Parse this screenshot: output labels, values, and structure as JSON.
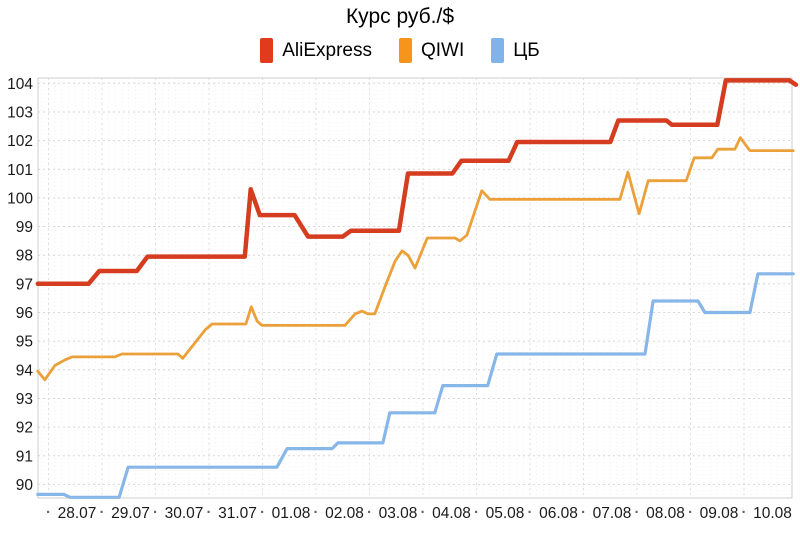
{
  "chart": {
    "title": "Курс руб./$"
  },
  "chart_data": {
    "type": "line",
    "subtype": "step-like time series",
    "title": "Курс руб./$",
    "legend_position": "top-center",
    "grid": true,
    "ylim": [
      89.5,
      104.2
    ],
    "y_axis": {
      "ticks": [
        104,
        103,
        102,
        101,
        100,
        99,
        98,
        97,
        96,
        95,
        94,
        93,
        92,
        91,
        90
      ]
    },
    "x_axis": {
      "labels": [
        "28.07",
        "29.07",
        "30.07",
        "31.07",
        "01.08",
        "02.08",
        "03.08",
        "04.08",
        "05.08",
        "06.08",
        "07.08",
        "08.08",
        "09.08",
        "10.08"
      ],
      "separator": "·"
    },
    "axis_text_color": "#1a1a1a",
    "separator_color": "#666666",
    "grid_colors": {
      "minor_v": "#f2f0ee",
      "major_v": "#e3e0dd",
      "horizontal": "#d9d6d3",
      "border": "#cfcfcf"
    },
    "series": [
      {
        "name": "AliExpress",
        "color": "#d53c20",
        "legend_color": "#e13a1c",
        "line_width": 4.5,
        "points": [
          [
            -0.2,
            97.0
          ],
          [
            0.75,
            97.0
          ],
          [
            0.95,
            97.45
          ],
          [
            1.65,
            97.45
          ],
          [
            1.85,
            97.95
          ],
          [
            3.67,
            97.95
          ],
          [
            3.78,
            100.3
          ],
          [
            3.95,
            99.4
          ],
          [
            4.6,
            99.4
          ],
          [
            4.85,
            98.65
          ],
          [
            5.5,
            98.65
          ],
          [
            5.65,
            98.85
          ],
          [
            6.55,
            98.85
          ],
          [
            6.72,
            100.85
          ],
          [
            7.55,
            100.85
          ],
          [
            7.72,
            101.3
          ],
          [
            8.6,
            101.3
          ],
          [
            8.76,
            101.95
          ],
          [
            10.5,
            101.95
          ],
          [
            10.65,
            102.7
          ],
          [
            11.55,
            102.7
          ],
          [
            11.65,
            102.55
          ],
          [
            12.5,
            102.55
          ],
          [
            12.66,
            104.1
          ],
          [
            13.85,
            104.1
          ],
          [
            13.97,
            103.95
          ]
        ]
      },
      {
        "name": "QIWI",
        "color": "#eba03a",
        "legend_color": "#f6941e",
        "line_width": 2.8,
        "points": [
          [
            -0.2,
            93.95
          ],
          [
            -0.07,
            93.65
          ],
          [
            0.12,
            94.15
          ],
          [
            0.31,
            94.35
          ],
          [
            0.44,
            94.45
          ],
          [
            1.24,
            94.45
          ],
          [
            1.37,
            94.55
          ],
          [
            2.42,
            94.55
          ],
          [
            2.51,
            94.4
          ],
          [
            2.93,
            95.4
          ],
          [
            3.06,
            95.6
          ],
          [
            3.69,
            95.6
          ],
          [
            3.79,
            96.2
          ],
          [
            3.9,
            95.7
          ],
          [
            3.99,
            95.55
          ],
          [
            5.54,
            95.55
          ],
          [
            5.73,
            95.95
          ],
          [
            5.86,
            96.05
          ],
          [
            5.97,
            95.95
          ],
          [
            6.1,
            95.95
          ],
          [
            6.29,
            96.9
          ],
          [
            6.48,
            97.8
          ],
          [
            6.61,
            98.15
          ],
          [
            6.72,
            98.0
          ],
          [
            6.85,
            97.55
          ],
          [
            7.08,
            98.6
          ],
          [
            7.6,
            98.6
          ],
          [
            7.69,
            98.5
          ],
          [
            7.82,
            98.7
          ],
          [
            8.1,
            100.25
          ],
          [
            8.25,
            99.95
          ],
          [
            10.68,
            99.95
          ],
          [
            10.83,
            100.9
          ],
          [
            11.04,
            99.45
          ],
          [
            11.21,
            100.6
          ],
          [
            11.92,
            100.6
          ],
          [
            12.07,
            101.4
          ],
          [
            12.4,
            101.4
          ],
          [
            12.51,
            101.7
          ],
          [
            12.83,
            101.7
          ],
          [
            12.93,
            102.1
          ],
          [
            13.11,
            101.65
          ],
          [
            13.92,
            101.65
          ]
        ]
      },
      {
        "name": "ЦБ",
        "color": "#87b7e9",
        "legend_color": "#80b3ea",
        "line_width": 3.2,
        "points": [
          [
            -0.2,
            89.65
          ],
          [
            0.29,
            89.65
          ],
          [
            0.4,
            89.55
          ],
          [
            1.32,
            89.55
          ],
          [
            1.49,
            90.6
          ],
          [
            4.27,
            90.6
          ],
          [
            4.46,
            91.25
          ],
          [
            5.3,
            91.25
          ],
          [
            5.41,
            91.45
          ],
          [
            6.25,
            91.45
          ],
          [
            6.38,
            92.5
          ],
          [
            7.22,
            92.5
          ],
          [
            7.37,
            93.45
          ],
          [
            8.21,
            93.45
          ],
          [
            8.38,
            94.55
          ],
          [
            11.15,
            94.55
          ],
          [
            11.3,
            96.4
          ],
          [
            12.14,
            96.4
          ],
          [
            12.27,
            96.0
          ],
          [
            13.11,
            96.0
          ],
          [
            13.26,
            97.35
          ],
          [
            13.92,
            97.35
          ]
        ]
      }
    ]
  }
}
